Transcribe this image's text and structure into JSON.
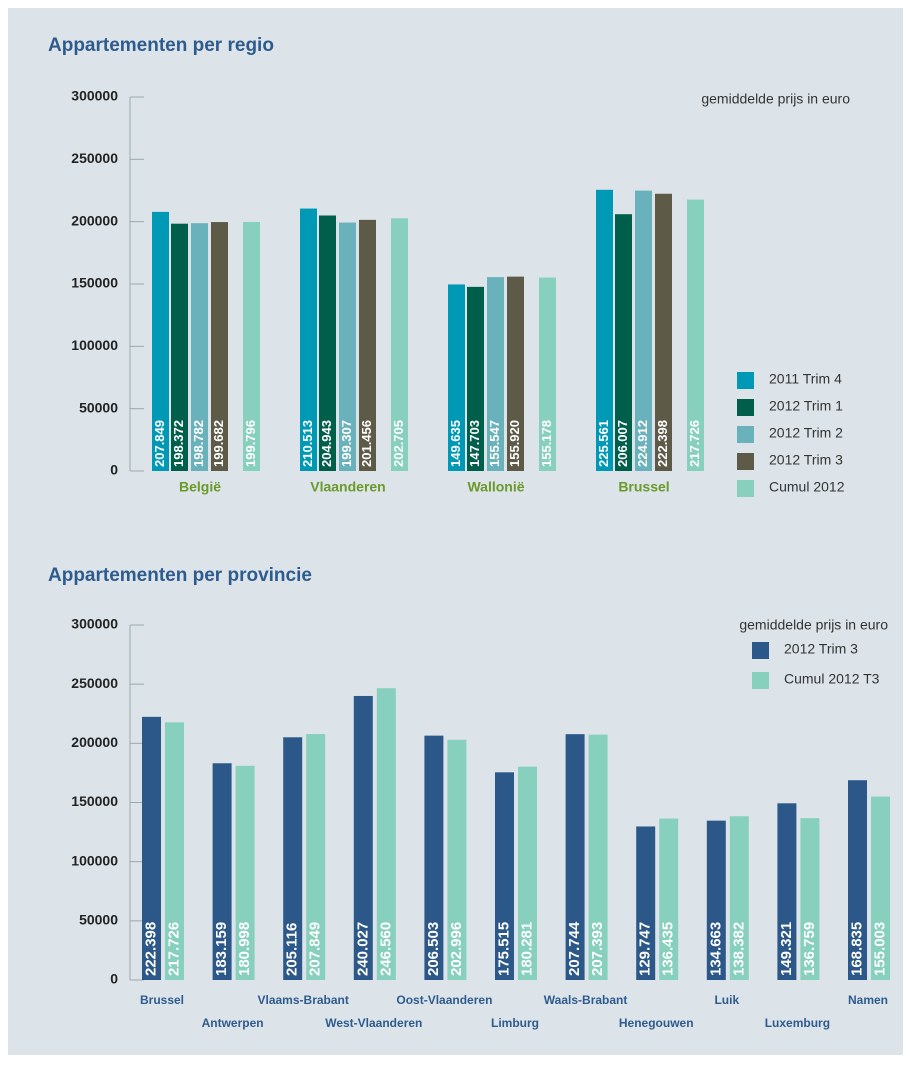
{
  "chart_data": [
    {
      "type": "bar",
      "title": "Appartementen per regio",
      "subtitle": "gemiddelde prijs in euro",
      "categories": [
        "België",
        "Vlaanderen",
        "Wallonië",
        "Brussel"
      ],
      "series": [
        {
          "name": "2011 Trim 4",
          "color": "#0099b5",
          "values": [
            207849,
            210513,
            149635,
            225561
          ],
          "value_labels": [
            "207.849",
            "210.513",
            "149.635",
            "225.561"
          ]
        },
        {
          "name": "2012 Trim 1",
          "color": "#005f4a",
          "values": [
            198372,
            204943,
            147703,
            206007
          ],
          "value_labels": [
            "198.372",
            "204.943",
            "147.703",
            "206.007"
          ]
        },
        {
          "name": "2012 Trim 2",
          "color": "#6ab2bb",
          "values": [
            198782,
            199307,
            155547,
            224912
          ],
          "value_labels": [
            "198.782",
            "199.307",
            "155.547",
            "224.912"
          ]
        },
        {
          "name": "2012 Trim 3",
          "color": "#5e5a48",
          "values": [
            199682,
            201456,
            155920,
            222398
          ],
          "value_labels": [
            "199.682",
            "201.456",
            "155.920",
            "222.398"
          ]
        },
        {
          "name": "Cumul 2012",
          "color": "#86d0bd",
          "values": [
            199796,
            202705,
            155178,
            217726
          ],
          "value_labels": [
            "199.796",
            "202.705",
            "155.178",
            "217.726"
          ]
        }
      ],
      "ylim": [
        0,
        300000
      ],
      "yticks": [
        0,
        50000,
        100000,
        150000,
        200000,
        250000,
        300000
      ],
      "legend": "right"
    },
    {
      "type": "bar",
      "title": "Appartementen per provincie",
      "subtitle": "gemiddelde prijs in euro",
      "categories": [
        "Brussel",
        "Antwerpen",
        "Vlaams-Brabant",
        "West-Vlaanderen",
        "Oost-Vlaanderen",
        "Limburg",
        "Waals-Brabant",
        "Henegouwen",
        "Luik",
        "Luxemburg",
        "Namen"
      ],
      "series": [
        {
          "name": "2012 Trim 3",
          "color": "#2c5889",
          "values": [
            222398,
            183159,
            205116,
            240027,
            206503,
            175515,
            207744,
            129747,
            134663,
            149321,
            168835
          ],
          "value_labels": [
            "222.398",
            "183.159",
            "205.116",
            "240.027",
            "206.503",
            "175.515",
            "207.744",
            "129.747",
            "134.663",
            "149.321",
            "168.835"
          ]
        },
        {
          "name": "Cumul 2012 T3",
          "color": "#86d0bd",
          "values": [
            217726,
            180998,
            207849,
            246560,
            202996,
            180281,
            207393,
            136435,
            138382,
            136759,
            155003
          ],
          "value_labels": [
            "217.726",
            "180.998",
            "207.849",
            "246.560",
            "202.996",
            "180.281",
            "207.393",
            "136.435",
            "138.382",
            "136.759",
            "155.003"
          ]
        }
      ],
      "ylim": [
        0,
        300000
      ],
      "yticks": [
        0,
        50000,
        100000,
        150000,
        200000,
        250000,
        300000
      ],
      "legend": "top-right"
    }
  ]
}
